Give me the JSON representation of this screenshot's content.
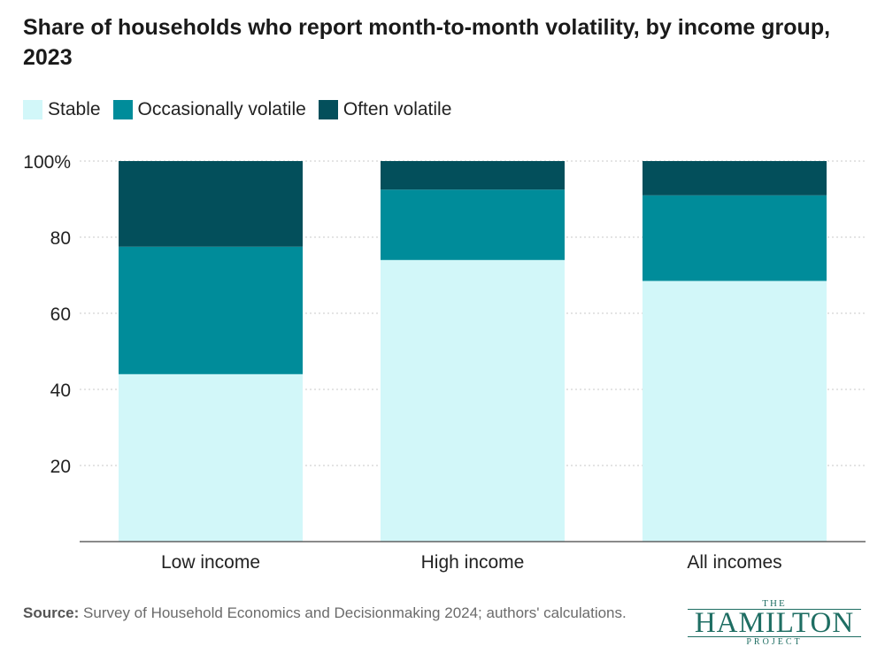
{
  "title": "Share of households who report month-to-month volatility, by income group, 2023",
  "legend": [
    {
      "label": "Stable",
      "color": "#d2f7f9"
    },
    {
      "label": "Occasionally volatile",
      "color": "#008c9a"
    },
    {
      "label": "Often volatile",
      "color": "#034f5b"
    }
  ],
  "chart_data": {
    "type": "bar",
    "stacked": true,
    "categories": [
      "Low income",
      "High income",
      "All incomes"
    ],
    "series": [
      {
        "name": "Stable",
        "values": [
          44,
          74,
          68.5
        ],
        "color": "#d2f7f9"
      },
      {
        "name": "Occasionally volatile",
        "values": [
          33.5,
          18.5,
          22.5
        ],
        "color": "#008c9a"
      },
      {
        "name": "Often volatile",
        "values": [
          22.5,
          7.5,
          9
        ],
        "color": "#034f5b"
      }
    ],
    "ylim": [
      0,
      100
    ],
    "yticks": [
      {
        "value": 20,
        "label": "20"
      },
      {
        "value": 40,
        "label": "40"
      },
      {
        "value": 60,
        "label": "60"
      },
      {
        "value": 80,
        "label": "80"
      },
      {
        "value": 100,
        "label": "100%"
      }
    ],
    "grid": true,
    "xlabel": "",
    "ylabel": ""
  },
  "source": {
    "label": "Source:",
    "text": "Survey of Household Economics and Decisionmaking 2024; authors' calculations."
  },
  "logo": {
    "top": "THE",
    "main": "HAMILTON",
    "bottom": "PROJECT"
  }
}
